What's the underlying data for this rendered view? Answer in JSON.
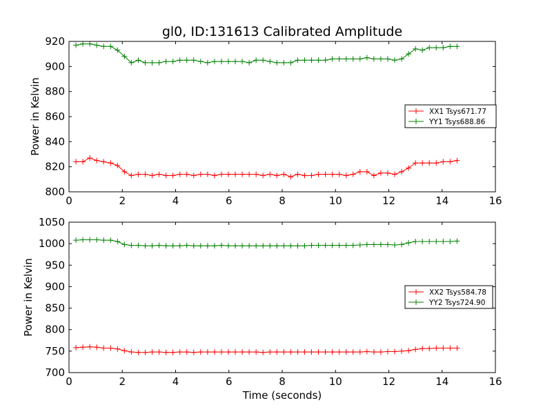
{
  "chart_data": [
    {
      "type": "line",
      "title": "gl0, ID:131613 Calibrated Amplitude",
      "xlabel": "",
      "ylabel": "Power in Kelvin",
      "xlim": [
        0,
        16
      ],
      "ylim": [
        800,
        920
      ],
      "xticks": [
        0,
        2,
        4,
        6,
        8,
        10,
        12,
        14,
        16
      ],
      "yticks": [
        800,
        820,
        840,
        860,
        880,
        900,
        920
      ],
      "grid": false,
      "legend_position": "right",
      "marker": "+",
      "x": [
        0.26,
        0.52,
        0.78,
        1.04,
        1.3,
        1.56,
        1.82,
        2.08,
        2.34,
        2.6,
        2.86,
        3.12,
        3.38,
        3.64,
        3.9,
        4.16,
        4.42,
        4.68,
        4.94,
        5.2,
        5.46,
        5.72,
        5.98,
        6.24,
        6.5,
        6.76,
        7.02,
        7.28,
        7.54,
        7.8,
        8.06,
        8.32,
        8.58,
        8.84,
        9.1,
        9.36,
        9.62,
        9.88,
        10.14,
        10.4,
        10.66,
        10.92,
        11.18,
        11.44,
        11.7,
        11.96,
        12.22,
        12.48,
        12.74,
        13.0,
        13.26,
        13.52,
        13.78,
        14.04,
        14.3,
        14.56
      ],
      "series": [
        {
          "name": "XX1 Tsys671.77",
          "color": "#ff0000",
          "values": [
            824,
            824,
            827,
            825,
            824,
            823,
            821,
            816,
            813,
            814,
            814,
            813,
            814,
            813,
            813,
            814,
            814,
            813,
            814,
            814,
            813,
            814,
            814,
            814,
            814,
            814,
            814,
            813,
            814,
            813,
            814,
            812,
            814,
            813,
            813,
            814,
            814,
            814,
            814,
            813,
            814,
            816,
            816,
            813,
            815,
            815,
            814,
            816,
            819,
            823,
            823,
            823,
            823,
            824,
            824,
            825
          ]
        },
        {
          "name": "YY1 Tsys688.86",
          "color": "#008000",
          "values": [
            917,
            918,
            918,
            917,
            916,
            916,
            913,
            908,
            903,
            905,
            903,
            903,
            903,
            904,
            904,
            905,
            905,
            905,
            904,
            903,
            904,
            904,
            904,
            904,
            904,
            903,
            905,
            905,
            904,
            903,
            903,
            903,
            905,
            905,
            905,
            905,
            905,
            906,
            906,
            906,
            906,
            906,
            907,
            906,
            906,
            906,
            905,
            906,
            910,
            914,
            913,
            915,
            915,
            915,
            916,
            916
          ]
        }
      ]
    },
    {
      "type": "line",
      "title": "",
      "xlabel": "Time (seconds)",
      "ylabel": "Power in Kelvin",
      "xlim": [
        0,
        16
      ],
      "ylim": [
        700,
        1050
      ],
      "xticks": [
        0,
        2,
        4,
        6,
        8,
        10,
        12,
        14,
        16
      ],
      "yticks": [
        700,
        750,
        800,
        850,
        900,
        950,
        1000,
        1050
      ],
      "grid": false,
      "legend_position": "right",
      "marker": "+",
      "x": [
        0.26,
        0.52,
        0.78,
        1.04,
        1.3,
        1.56,
        1.82,
        2.08,
        2.34,
        2.6,
        2.86,
        3.12,
        3.38,
        3.64,
        3.9,
        4.16,
        4.42,
        4.68,
        4.94,
        5.2,
        5.46,
        5.72,
        5.98,
        6.24,
        6.5,
        6.76,
        7.02,
        7.28,
        7.54,
        7.8,
        8.06,
        8.32,
        8.58,
        8.84,
        9.1,
        9.36,
        9.62,
        9.88,
        10.14,
        10.4,
        10.66,
        10.92,
        11.18,
        11.44,
        11.7,
        11.96,
        12.22,
        12.48,
        12.74,
        13.0,
        13.26,
        13.52,
        13.78,
        14.04,
        14.3,
        14.56
      ],
      "series": [
        {
          "name": "XX2 Tsys584.78",
          "color": "#ff0000",
          "values": [
            758,
            759,
            760,
            759,
            757,
            757,
            755,
            751,
            748,
            747,
            747,
            748,
            748,
            747,
            747,
            748,
            748,
            747,
            748,
            748,
            748,
            748,
            748,
            748,
            748,
            748,
            748,
            747,
            748,
            748,
            748,
            748,
            748,
            748,
            748,
            748,
            748,
            748,
            748,
            748,
            748,
            748,
            749,
            748,
            748,
            749,
            749,
            750,
            751,
            754,
            756,
            756,
            757,
            757,
            757,
            757
          ]
        },
        {
          "name": "YY2 Tsys724.90",
          "color": "#008000",
          "values": [
            1008,
            1009,
            1009,
            1009,
            1008,
            1008,
            1005,
            998,
            996,
            996,
            995,
            995,
            996,
            995,
            995,
            995,
            996,
            995,
            995,
            995,
            995,
            996,
            995,
            995,
            995,
            995,
            995,
            995,
            995,
            995,
            995,
            995,
            995,
            995,
            996,
            996,
            996,
            996,
            996,
            996,
            996,
            997,
            998,
            998,
            998,
            998,
            997,
            998,
            1002,
            1005,
            1005,
            1005,
            1005,
            1005,
            1005,
            1006
          ]
        }
      ]
    }
  ]
}
